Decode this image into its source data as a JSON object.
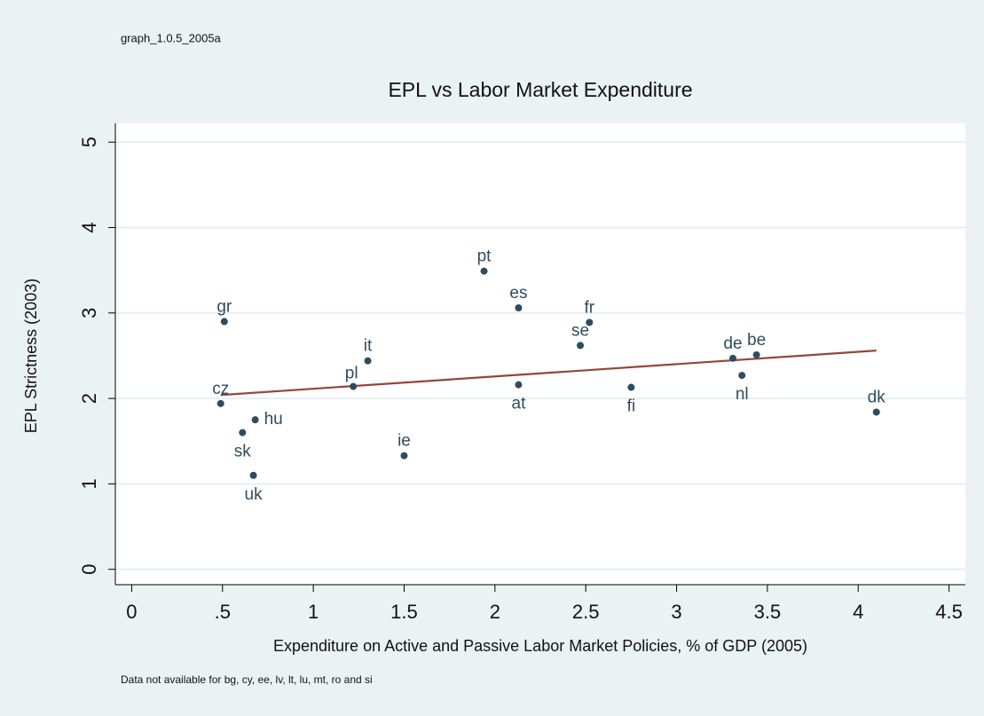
{
  "chart_data": {
    "type": "scatter",
    "note": "graph_1.0.5_2005a",
    "title": "EPL vs Labor Market Expenditure",
    "x_label": "Expenditure on Active and Passive Labor Market Policies,  % of GDP (2005)",
    "y_label": "EPL Strictness (2003)",
    "footnote": "Data not available for bg, cy, ee, lv, lt, lu, mt, ro and si",
    "labels": [
      "gr",
      "cz",
      "hu",
      "sk",
      "uk",
      "pl",
      "it",
      "ie",
      "pt",
      "es",
      "at",
      "se",
      "fr",
      "fi",
      "de",
      "be",
      "nl",
      "dk"
    ],
    "x": [
      0.51,
      0.49,
      0.68,
      0.61,
      0.67,
      1.22,
      1.3,
      1.5,
      1.94,
      2.13,
      2.13,
      2.47,
      2.52,
      2.75,
      3.31,
      3.44,
      3.36,
      4.1
    ],
    "y": [
      2.9,
      1.94,
      1.75,
      1.6,
      1.1,
      2.14,
      2.44,
      1.33,
      3.49,
      3.06,
      2.16,
      2.62,
      2.89,
      2.13,
      2.47,
      2.51,
      2.27,
      1.84
    ],
    "color": "#2f4c5e",
    "fit_line": {
      "x": [
        0.49,
        4.1
      ],
      "y": [
        2.04,
        2.56
      ],
      "color": "#93463a"
    },
    "xlim": [
      -0.09,
      4.59
    ],
    "ylim": [
      -0.18,
      5.22
    ],
    "xticks": [
      0,
      {
        "value": 0.5,
        "label": ".5"
      },
      1,
      1.5,
      2,
      2.5,
      3,
      3.5,
      4,
      4.5
    ],
    "yticks": [
      0,
      1,
      2,
      3,
      4,
      5
    ],
    "grid": true
  }
}
